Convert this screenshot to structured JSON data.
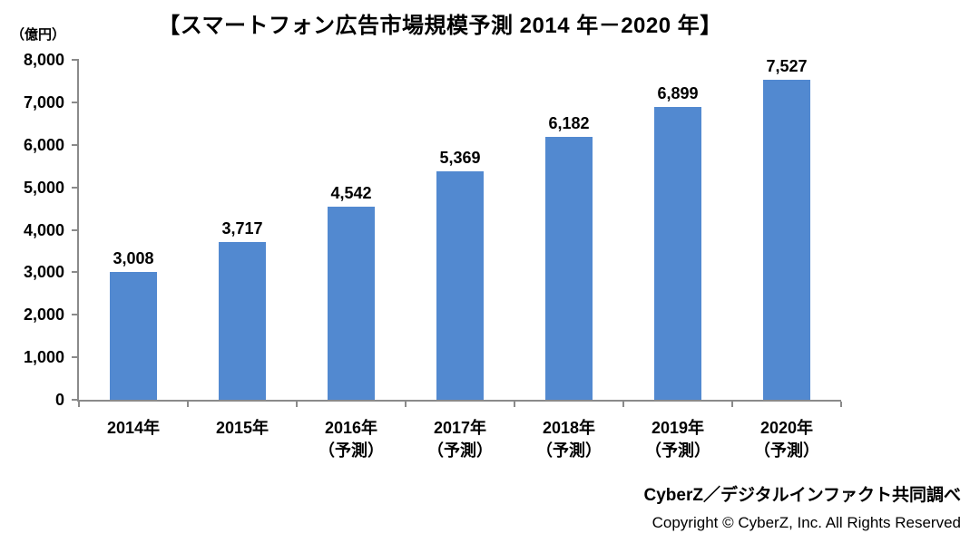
{
  "page": {
    "title": "【スマートフォン広告市場規模予測 2014 年－2020 年】",
    "unit_label": "（億円）",
    "source_credit": "CyberZ／デジタルインファクト共同調べ",
    "copyright": "Copyright © CyberZ, Inc. All Rights Reserved"
  },
  "colors": {
    "bar": "#5289D0",
    "axis": "#8A8A8A",
    "text": "#000000",
    "background": "#FFFFFF"
  },
  "chart_data": {
    "type": "bar",
    "title": "スマートフォン広告市場規模予測 2014年－2020年",
    "unit": "億円",
    "categories": [
      "2014年",
      "2015年",
      "2016年",
      "2017年",
      "2018年",
      "2019年",
      "2020年"
    ],
    "category_notes": [
      "",
      "",
      "（予測）",
      "（予測）",
      "（予測）",
      "（予測）",
      "（予測）"
    ],
    "values": [
      3008,
      3717,
      4542,
      5369,
      6182,
      6899,
      7527
    ],
    "value_labels": [
      "3,008",
      "3,717",
      "4,542",
      "5,369",
      "6,182",
      "6,899",
      "7,527"
    ],
    "xlabel": "",
    "ylabel": "（億円）",
    "ylim": [
      0,
      8000
    ],
    "yticks": [
      0,
      1000,
      2000,
      3000,
      4000,
      5000,
      6000,
      7000,
      8000
    ],
    "ytick_labels": [
      "0",
      "1,000",
      "2,000",
      "3,000",
      "4,000",
      "5,000",
      "6,000",
      "7,000",
      "8,000"
    ],
    "grid": false,
    "legend": false,
    "bar_color": "#5289D0"
  }
}
